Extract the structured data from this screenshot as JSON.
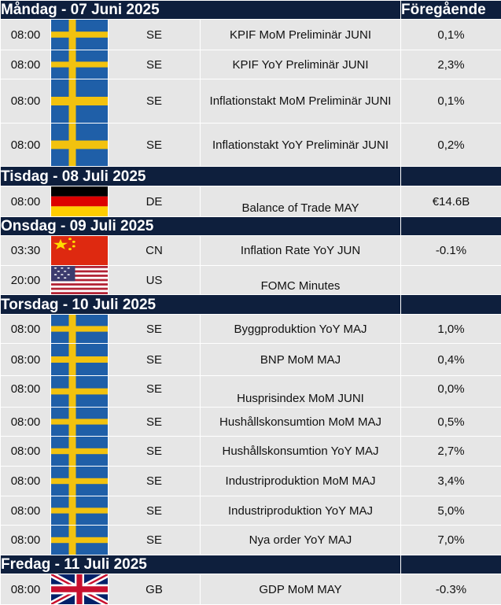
{
  "header": {
    "first_day": "Måndag - 07 Juni 2025",
    "previous_col": "Föregående"
  },
  "days": [
    {
      "title": "Måndag - 07 Juni 2025",
      "events": [
        {
          "time": "08:00",
          "flag": "sweden-flag-icon",
          "country": "SE",
          "name": "KPIF MoM Preliminär JUNI",
          "previous": "0,1%"
        },
        {
          "time": "08:00",
          "flag": "sweden-flag-icon",
          "country": "SE",
          "name": "KPIF YoY Preliminär JUNI",
          "previous": "2,3%"
        },
        {
          "time": "08:00",
          "flag": "sweden-flag-icon",
          "country": "SE",
          "name": "Inflationstakt MoM Preliminär JUNI",
          "previous": "0,1%"
        },
        {
          "time": "08:00",
          "flag": "sweden-flag-icon",
          "country": "SE",
          "name": "Inflationstakt YoY Preliminär JUNI",
          "previous": "0,2%"
        }
      ]
    },
    {
      "title": "Tisdag - 08 Juli 2025",
      "events": [
        {
          "time": "08:00",
          "flag": "germany-flag-icon",
          "country": "DE",
          "name": "Balance of Trade MAY",
          "previous": "€14.6B"
        }
      ]
    },
    {
      "title": "Onsdag - 09 Juli 2025",
      "events": [
        {
          "time": "03:30",
          "flag": "china-flag-icon",
          "country": "CN",
          "name": "Inflation Rate YoY JUN",
          "previous": "-0.1%"
        },
        {
          "time": "20:00",
          "flag": "usa-flag-icon",
          "country": "US",
          "name": "FOMC Minutes",
          "previous": ""
        }
      ]
    },
    {
      "title": "Torsdag - 10 Juli 2025",
      "events": [
        {
          "time": "08:00",
          "flag": "sweden-flag-icon",
          "country": "SE",
          "name": "Byggproduktion YoY MAJ",
          "previous": "1,0%"
        },
        {
          "time": "08:00",
          "flag": "sweden-flag-icon",
          "country": "SE",
          "name": "BNP MoM MAJ",
          "previous": "0,4%"
        },
        {
          "time": "08:00",
          "flag": "sweden-flag-icon",
          "country": "SE",
          "name": "Husprisindex MoM JUNI",
          "previous": "0,0%"
        },
        {
          "time": "08:00",
          "flag": "sweden-flag-icon",
          "country": "SE",
          "name": "Hushållskonsumtion MoM MAJ",
          "previous": "0,5%"
        },
        {
          "time": "08:00",
          "flag": "sweden-flag-icon",
          "country": "SE",
          "name": "Hushållskonsumtion YoY MAJ",
          "previous": "2,7%"
        },
        {
          "time": "08:00",
          "flag": "sweden-flag-icon",
          "country": "SE",
          "name": "Industriproduktion MoM MAJ",
          "previous": "3,4%"
        },
        {
          "time": "08:00",
          "flag": "sweden-flag-icon",
          "country": "SE",
          "name": "Industriproduktion YoY MAJ",
          "previous": "5,0%"
        },
        {
          "time": "08:00",
          "flag": "sweden-flag-icon",
          "country": "SE",
          "name": "Nya order YoY MAJ",
          "previous": "7,0%"
        }
      ]
    },
    {
      "title": "Fredag - 11 Juli 2025",
      "events": [
        {
          "time": "08:00",
          "flag": "uk-flag-icon",
          "country": "GB",
          "name": "GDP MoM MAY",
          "previous": "-0.3%"
        }
      ]
    }
  ]
}
